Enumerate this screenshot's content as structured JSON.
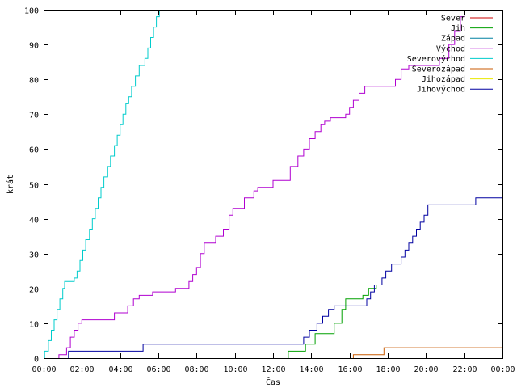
{
  "chart_data": {
    "type": "line",
    "title": "",
    "xlabel": "Čas",
    "ylabel": "krát",
    "xlim": [
      0,
      24
    ],
    "ylim": [
      0,
      100
    ],
    "x_unit": "hours",
    "x_ticks": [
      0,
      2,
      4,
      6,
      8,
      10,
      12,
      14,
      16,
      18,
      20,
      22,
      24
    ],
    "x_tick_labels": [
      "00:00",
      "02:00",
      "04:00",
      "06:00",
      "08:00",
      "10:00",
      "12:00",
      "14:00",
      "16:00",
      "18:00",
      "20:00",
      "22:00",
      "00:00"
    ],
    "y_ticks": [
      0,
      10,
      20,
      30,
      40,
      50,
      60,
      70,
      80,
      90,
      100
    ],
    "y_tick_labels": [
      "0",
      "10",
      "20",
      "30",
      "40",
      "50",
      "60",
      "70",
      "80",
      "90",
      "100"
    ],
    "legend_position": "top-right",
    "grid": false,
    "series": [
      {
        "name": "Sever",
        "color": "#cc0000",
        "step": true,
        "points": []
      },
      {
        "name": "Jih",
        "color": "#00a000",
        "step": true,
        "points": [
          [
            12.8,
            0
          ],
          [
            12.8,
            2
          ],
          [
            13.7,
            2
          ],
          [
            13.7,
            4
          ],
          [
            14.2,
            4
          ],
          [
            14.2,
            7
          ],
          [
            15.2,
            7
          ],
          [
            15.2,
            10
          ],
          [
            15.6,
            10
          ],
          [
            15.6,
            14
          ],
          [
            15.8,
            14
          ],
          [
            15.8,
            17
          ],
          [
            16.7,
            17
          ],
          [
            16.7,
            18
          ],
          [
            17.0,
            18
          ],
          [
            17.0,
            20
          ],
          [
            17.4,
            20
          ],
          [
            17.4,
            21
          ],
          [
            24.0,
            21
          ]
        ]
      },
      {
        "name": "Západ",
        "color": "#0080a0",
        "step": true,
        "points": []
      },
      {
        "name": "Východ",
        "color": "#b000d0",
        "step": true,
        "points": [
          [
            0.8,
            0
          ],
          [
            0.8,
            1
          ],
          [
            1.2,
            1
          ],
          [
            1.2,
            3
          ],
          [
            1.4,
            3
          ],
          [
            1.4,
            6
          ],
          [
            1.6,
            6
          ],
          [
            1.6,
            8
          ],
          [
            1.8,
            8
          ],
          [
            1.8,
            10
          ],
          [
            2.0,
            10
          ],
          [
            2.0,
            11
          ],
          [
            3.7,
            11
          ],
          [
            3.7,
            13
          ],
          [
            4.4,
            13
          ],
          [
            4.4,
            15
          ],
          [
            4.7,
            15
          ],
          [
            4.7,
            17
          ],
          [
            5.0,
            17
          ],
          [
            5.0,
            18
          ],
          [
            5.7,
            18
          ],
          [
            5.7,
            19
          ],
          [
            6.9,
            19
          ],
          [
            6.9,
            20
          ],
          [
            7.6,
            20
          ],
          [
            7.6,
            22
          ],
          [
            7.8,
            22
          ],
          [
            7.8,
            24
          ],
          [
            8.0,
            24
          ],
          [
            8.0,
            26
          ],
          [
            8.2,
            26
          ],
          [
            8.2,
            30
          ],
          [
            8.4,
            30
          ],
          [
            8.4,
            33
          ],
          [
            9.0,
            33
          ],
          [
            9.0,
            35
          ],
          [
            9.4,
            35
          ],
          [
            9.4,
            37
          ],
          [
            9.7,
            37
          ],
          [
            9.7,
            41
          ],
          [
            9.9,
            41
          ],
          [
            9.9,
            43
          ],
          [
            10.5,
            43
          ],
          [
            10.5,
            46
          ],
          [
            11.0,
            46
          ],
          [
            11.0,
            48
          ],
          [
            11.2,
            48
          ],
          [
            11.2,
            49
          ],
          [
            12.0,
            49
          ],
          [
            12.0,
            51
          ],
          [
            12.9,
            51
          ],
          [
            12.9,
            55
          ],
          [
            13.3,
            55
          ],
          [
            13.3,
            58
          ],
          [
            13.6,
            58
          ],
          [
            13.6,
            60
          ],
          [
            13.9,
            60
          ],
          [
            13.9,
            63
          ],
          [
            14.2,
            63
          ],
          [
            14.2,
            65
          ],
          [
            14.5,
            65
          ],
          [
            14.5,
            67
          ],
          [
            14.7,
            67
          ],
          [
            14.7,
            68
          ],
          [
            15.0,
            68
          ],
          [
            15.0,
            69
          ],
          [
            15.8,
            69
          ],
          [
            15.8,
            70
          ],
          [
            16.0,
            70
          ],
          [
            16.0,
            72
          ],
          [
            16.2,
            72
          ],
          [
            16.2,
            74
          ],
          [
            16.5,
            74
          ],
          [
            16.5,
            76
          ],
          [
            16.8,
            76
          ],
          [
            16.8,
            78
          ],
          [
            18.4,
            78
          ],
          [
            18.4,
            80
          ],
          [
            18.7,
            80
          ],
          [
            18.7,
            83
          ],
          [
            19.1,
            83
          ],
          [
            19.1,
            84
          ],
          [
            20.7,
            84
          ],
          [
            20.7,
            86
          ],
          [
            21.2,
            86
          ],
          [
            21.2,
            90
          ],
          [
            21.5,
            90
          ],
          [
            21.5,
            94
          ],
          [
            21.8,
            94
          ],
          [
            21.8,
            98
          ],
          [
            22.0,
            98
          ],
          [
            22.0,
            100
          ]
        ]
      },
      {
        "name": "Severovýchod",
        "color": "#00cccc",
        "step": true,
        "points": [
          [
            0.05,
            0
          ],
          [
            0.05,
            2
          ],
          [
            0.25,
            2
          ],
          [
            0.25,
            5
          ],
          [
            0.4,
            5
          ],
          [
            0.4,
            8
          ],
          [
            0.55,
            8
          ],
          [
            0.55,
            11
          ],
          [
            0.7,
            11
          ],
          [
            0.7,
            14
          ],
          [
            0.85,
            14
          ],
          [
            0.85,
            17
          ],
          [
            1.0,
            17
          ],
          [
            1.0,
            20
          ],
          [
            1.1,
            20
          ],
          [
            1.1,
            22
          ],
          [
            1.6,
            22
          ],
          [
            1.6,
            23
          ],
          [
            1.75,
            23
          ],
          [
            1.75,
            25
          ],
          [
            1.9,
            25
          ],
          [
            1.9,
            28
          ],
          [
            2.05,
            28
          ],
          [
            2.05,
            31
          ],
          [
            2.2,
            31
          ],
          [
            2.2,
            34
          ],
          [
            2.4,
            34
          ],
          [
            2.4,
            37
          ],
          [
            2.55,
            37
          ],
          [
            2.55,
            40
          ],
          [
            2.7,
            40
          ],
          [
            2.7,
            43
          ],
          [
            2.85,
            43
          ],
          [
            2.85,
            46
          ],
          [
            3.0,
            46
          ],
          [
            3.0,
            49
          ],
          [
            3.15,
            49
          ],
          [
            3.15,
            52
          ],
          [
            3.35,
            52
          ],
          [
            3.35,
            55
          ],
          [
            3.5,
            55
          ],
          [
            3.5,
            58
          ],
          [
            3.7,
            58
          ],
          [
            3.7,
            61
          ],
          [
            3.85,
            61
          ],
          [
            3.85,
            64
          ],
          [
            4.0,
            64
          ],
          [
            4.0,
            67
          ],
          [
            4.15,
            67
          ],
          [
            4.15,
            70
          ],
          [
            4.3,
            70
          ],
          [
            4.3,
            73
          ],
          [
            4.45,
            73
          ],
          [
            4.45,
            75
          ],
          [
            4.6,
            75
          ],
          [
            4.6,
            78
          ],
          [
            4.8,
            78
          ],
          [
            4.8,
            81
          ],
          [
            5.0,
            81
          ],
          [
            5.0,
            84
          ],
          [
            5.3,
            84
          ],
          [
            5.3,
            86
          ],
          [
            5.45,
            86
          ],
          [
            5.45,
            89
          ],
          [
            5.6,
            89
          ],
          [
            5.6,
            92
          ],
          [
            5.75,
            92
          ],
          [
            5.75,
            95
          ],
          [
            5.9,
            95
          ],
          [
            5.9,
            98
          ],
          [
            6.05,
            98
          ],
          [
            6.05,
            100
          ]
        ]
      },
      {
        "name": "Severozápad",
        "color": "#c85a00",
        "step": true,
        "points": [
          [
            16.2,
            0
          ],
          [
            16.2,
            1
          ],
          [
            17.8,
            1
          ],
          [
            17.8,
            3
          ],
          [
            24.0,
            3
          ]
        ]
      },
      {
        "name": "Jihozápad",
        "color": "#e8e800",
        "step": true,
        "points": []
      },
      {
        "name": "Jihovýchod",
        "color": "#0000a0",
        "step": true,
        "points": [
          [
            1.3,
            0
          ],
          [
            1.3,
            2
          ],
          [
            5.2,
            2
          ],
          [
            5.2,
            4
          ],
          [
            13.6,
            4
          ],
          [
            13.6,
            6
          ],
          [
            13.9,
            6
          ],
          [
            13.9,
            8
          ],
          [
            14.3,
            8
          ],
          [
            14.3,
            10
          ],
          [
            14.6,
            10
          ],
          [
            14.6,
            12
          ],
          [
            14.9,
            12
          ],
          [
            14.9,
            14
          ],
          [
            15.2,
            14
          ],
          [
            15.2,
            15
          ],
          [
            16.9,
            15
          ],
          [
            16.9,
            17
          ],
          [
            17.1,
            17
          ],
          [
            17.1,
            19
          ],
          [
            17.3,
            19
          ],
          [
            17.3,
            21
          ],
          [
            17.7,
            21
          ],
          [
            17.7,
            23
          ],
          [
            17.9,
            23
          ],
          [
            17.9,
            25
          ],
          [
            18.2,
            25
          ],
          [
            18.2,
            27
          ],
          [
            18.7,
            27
          ],
          [
            18.7,
            29
          ],
          [
            18.9,
            29
          ],
          [
            18.9,
            31
          ],
          [
            19.1,
            31
          ],
          [
            19.1,
            33
          ],
          [
            19.3,
            33
          ],
          [
            19.3,
            35
          ],
          [
            19.5,
            35
          ],
          [
            19.5,
            37
          ],
          [
            19.7,
            37
          ],
          [
            19.7,
            39
          ],
          [
            19.9,
            39
          ],
          [
            19.9,
            41
          ],
          [
            20.1,
            41
          ],
          [
            20.1,
            44
          ],
          [
            22.6,
            44
          ],
          [
            22.6,
            46
          ],
          [
            24.0,
            46
          ]
        ]
      }
    ]
  }
}
